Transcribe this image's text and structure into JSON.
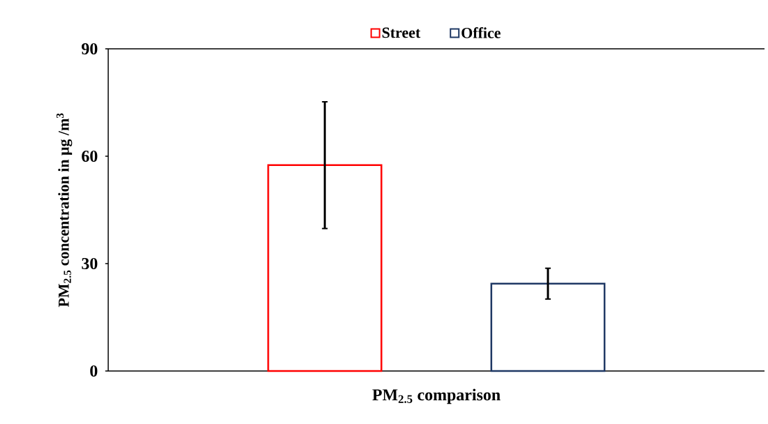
{
  "chart_data": {
    "type": "bar",
    "xlabel": "PM$_{2.5}$ comparison",
    "ylabel": "PM$_{2.5}$ concentration in µg /m$^{3}$",
    "categories": [
      null
    ],
    "series": [
      {
        "name": "Street",
        "color": "#ff0000",
        "values": [
          57.5
        ],
        "errors": [
          17.7
        ]
      },
      {
        "name": "Office",
        "color": "#1f3864",
        "values": [
          24.4
        ],
        "errors": [
          4.3
        ]
      }
    ],
    "ylim": [
      0,
      90
    ],
    "yticks": [
      0,
      30,
      60,
      90
    ],
    "grid": false,
    "legend": "top"
  }
}
